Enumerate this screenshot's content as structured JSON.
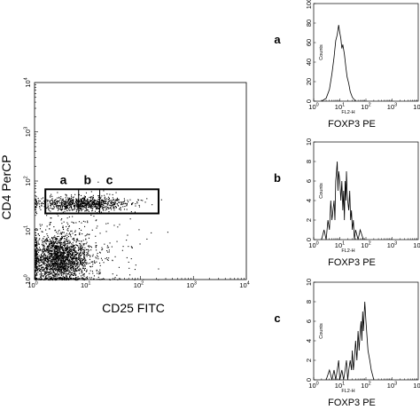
{
  "chart_data": [
    {
      "type": "scatter",
      "x_scale": "log",
      "y_scale": "log",
      "xlabel": "CD25 FITC",
      "ylabel": "CD4 PerCP",
      "xlim": [
        1,
        10000
      ],
      "ylim": [
        1,
        10000
      ],
      "x_ticks": [
        {
          "base": "10",
          "exp": "0"
        },
        {
          "base": "10",
          "exp": "1"
        },
        {
          "base": "10",
          "exp": "2"
        },
        {
          "base": "10",
          "exp": "3"
        },
        {
          "base": "10",
          "exp": "4"
        }
      ],
      "y_ticks": [
        {
          "base": "10",
          "exp": "0"
        },
        {
          "base": "10",
          "exp": "1"
        },
        {
          "base": "10",
          "exp": "2"
        },
        {
          "base": "10",
          "exp": "3"
        },
        {
          "base": "10",
          "exp": "4"
        }
      ],
      "gate": {
        "x": [
          1.6,
          220
        ],
        "y": [
          22,
          68
        ]
      },
      "gate_subdivisions_x": [
        6.8,
        17
      ],
      "gate_labels": [
        {
          "text": "a",
          "x": 3.5
        },
        {
          "text": "b",
          "x": 10
        },
        {
          "text": "c",
          "x": 26
        }
      ],
      "populations": [
        {
          "name_note": "dense double-negative cluster",
          "x_center": 2.8,
          "y_center": 2.6,
          "x_spread_decades": 0.28,
          "y_spread_decades": 0.25,
          "relative_density": 1.0
        },
        {
          "name_note": "CD4+ band",
          "x_center": 8,
          "y_center": 35,
          "x_spread_decades": 0.45,
          "y_spread_decades": 0.07,
          "relative_density": 0.45
        },
        {
          "name_note": "scattered events",
          "x_center": 5,
          "y_center": 4,
          "x_spread_decades": 0.6,
          "y_spread_decades": 0.5,
          "relative_density": 0.2
        }
      ]
    },
    {
      "type": "line",
      "panel": "a",
      "x_scale": "log",
      "xlabel": "FOXP3 PE",
      "x_channel_label": "FL2-H",
      "ylabel": "Counts",
      "xlim": [
        1,
        10000
      ],
      "ylim": [
        0,
        100
      ],
      "y_ticks": [
        "0",
        "20",
        "40",
        "60",
        "80",
        "100"
      ],
      "x_ticks": [
        {
          "base": "10",
          "exp": "0"
        },
        {
          "base": "10",
          "exp": "1"
        },
        {
          "base": "10",
          "exp": "2"
        },
        {
          "base": "10",
          "exp": "3"
        },
        {
          "base": "10",
          "exp": "4"
        }
      ],
      "x": [
        2.0,
        3.0,
        4.0,
        5.0,
        6.0,
        7.0,
        8.0,
        9.0,
        10.0,
        11.0,
        12.0,
        13.0,
        15.0,
        17.0,
        19.0,
        22.0,
        25.0,
        30.0,
        40.0
      ],
      "y": [
        0,
        3,
        12,
        28,
        45,
        62,
        68,
        78,
        70,
        64,
        54,
        58,
        48,
        35,
        25,
        18,
        10,
        4,
        0
      ]
    },
    {
      "type": "line",
      "panel": "b",
      "x_scale": "log",
      "xlabel": "FOXP3 PE",
      "x_channel_label": "FL2-H",
      "ylabel": "Counts",
      "xlim": [
        1,
        10000
      ],
      "ylim": [
        0,
        10
      ],
      "y_ticks": [
        "0",
        "2",
        "4",
        "6",
        "8",
        "10"
      ],
      "x_ticks": [
        {
          "base": "10",
          "exp": "0"
        },
        {
          "base": "10",
          "exp": "1"
        },
        {
          "base": "10",
          "exp": "2"
        },
        {
          "base": "10",
          "exp": "3"
        },
        {
          "base": "10",
          "exp": "4"
        }
      ],
      "x": [
        2.0,
        2.5,
        3.0,
        3.5,
        4.0,
        4.5,
        5.0,
        5.5,
        6.0,
        6.5,
        7.0,
        7.5,
        8.0,
        8.5,
        9.0,
        10.0,
        11.0,
        12.0,
        13.0,
        14.0,
        15.0,
        16.0,
        17.0,
        18.0,
        19.0,
        20.0,
        22.0,
        24.0,
        26.0,
        28.0,
        30.0,
        33.0,
        36.0,
        40.0,
        50.0,
        60.0,
        80.0
      ],
      "y": [
        0,
        1,
        0,
        2,
        1,
        4,
        2,
        3,
        4,
        2,
        6,
        7,
        8,
        5,
        7,
        6,
        4,
        6,
        3,
        5,
        2,
        6,
        4,
        7,
        5,
        4,
        3,
        5,
        2,
        3,
        1,
        2,
        0,
        1,
        0,
        1,
        0
      ]
    },
    {
      "type": "line",
      "panel": "c",
      "x_scale": "log",
      "xlabel": "FOXP3 PE",
      "x_channel_label": "FL2-H",
      "ylabel": "Counts",
      "xlim": [
        1,
        10000
      ],
      "ylim": [
        0,
        10
      ],
      "y_ticks": [
        "0",
        "2",
        "4",
        "6",
        "8",
        "10"
      ],
      "x_ticks": [
        {
          "base": "10",
          "exp": "0"
        },
        {
          "base": "10",
          "exp": "1"
        },
        {
          "base": "10",
          "exp": "2"
        },
        {
          "base": "10",
          "exp": "3"
        },
        {
          "base": "10",
          "exp": "4"
        }
      ],
      "x": [
        3.0,
        4.0,
        5.0,
        6.0,
        7.0,
        8.0,
        9.0,
        10.0,
        12.0,
        14.0,
        16.0,
        18.0,
        20.0,
        22.0,
        25.0,
        28.0,
        30.0,
        33.0,
        36.0,
        40.0,
        45.0,
        50.0,
        55.0,
        60.0,
        65.0,
        70.0,
        75.0,
        80.0,
        90.0,
        100.0,
        120.0,
        140.0,
        160.0,
        200.0
      ],
      "y": [
        0,
        1,
        0,
        1,
        0,
        1,
        2,
        0,
        1,
        0,
        1,
        2,
        0,
        1,
        2,
        1,
        3,
        1,
        2,
        4,
        2,
        5,
        3,
        5,
        6,
        4,
        7,
        5,
        8,
        6,
        3,
        2,
        1,
        0
      ]
    }
  ]
}
